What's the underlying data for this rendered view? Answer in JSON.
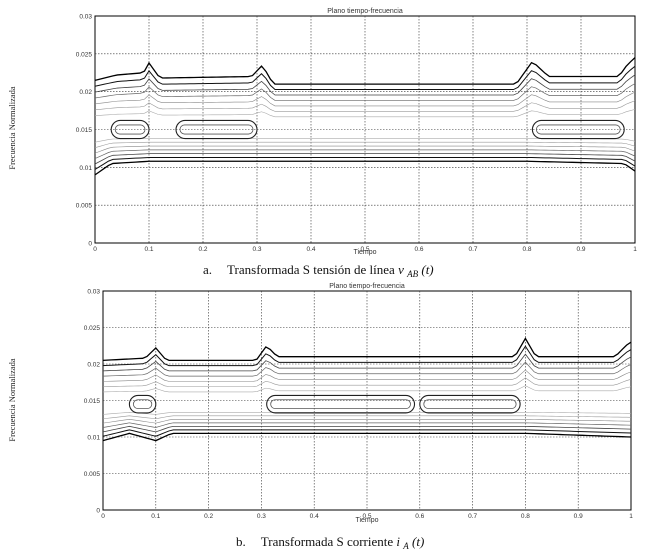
{
  "panels": [
    {
      "caption_letter": "a.",
      "caption_text": "Transformada S tensión de línea ",
      "caption_var": "v",
      "caption_sub": "AB",
      "caption_arg": "(t)",
      "chart_data": {
        "type": "contour",
        "title": "Plano tiempo-frecuencia",
        "xlabel": "Tiempo",
        "ylabel": "Frecuencia Normalizada",
        "xlim": [
          0,
          1
        ],
        "ylim": [
          0,
          0.03
        ],
        "xticks": [
          "0",
          "0.1",
          "0.2",
          "0.3",
          "0.4",
          "0.5",
          "0.6",
          "0.7",
          "0.8",
          "0.9",
          "1"
        ],
        "yticks": [
          "0",
          "0.005",
          "0.01",
          "0.015",
          "0.02",
          "0.025",
          "0.03"
        ],
        "grid": true,
        "center_frequency": 0.015,
        "upper_envelope": [
          [
            0.0,
            0.0215
          ],
          [
            0.04,
            0.0222
          ],
          [
            0.09,
            0.0225
          ],
          [
            0.1,
            0.0238
          ],
          [
            0.12,
            0.0218
          ],
          [
            0.29,
            0.022
          ],
          [
            0.31,
            0.0235
          ],
          [
            0.33,
            0.021
          ],
          [
            0.78,
            0.021
          ],
          [
            0.81,
            0.024
          ],
          [
            0.84,
            0.022
          ],
          [
            0.97,
            0.022
          ],
          [
            0.985,
            0.0235
          ],
          [
            1.0,
            0.0245
          ]
        ],
        "lower_envelope": [
          [
            0.0,
            0.009
          ],
          [
            0.03,
            0.0105
          ],
          [
            0.1,
            0.0108
          ],
          [
            0.3,
            0.0108
          ],
          [
            0.6,
            0.0108
          ],
          [
            0.8,
            0.0108
          ],
          [
            0.98,
            0.0105
          ],
          [
            1.0,
            0.0095
          ]
        ],
        "high_energy_intervals": [
          [
            0.03,
            0.1
          ],
          [
            0.15,
            0.3
          ],
          [
            0.81,
            0.98
          ]
        ]
      }
    },
    {
      "caption_letter": "b.",
      "caption_text": "Transformada S corriente ",
      "caption_var": "i",
      "caption_sub": "A",
      "caption_arg": "(t)",
      "chart_data": {
        "type": "contour",
        "title": "Plano tiempo-frecuencia",
        "xlabel": "Tiempo",
        "ylabel": "Frecuencia Normalizada",
        "xlim": [
          0,
          1
        ],
        "ylim": [
          0,
          0.03
        ],
        "xticks": [
          "0",
          "0.1",
          "0.2",
          "0.3",
          "0.4",
          "0.5",
          "0.6",
          "0.7",
          "0.8",
          "0.9",
          "1"
        ],
        "yticks": [
          "0",
          "0.005",
          "0.01",
          "0.015",
          "0.02",
          "0.025",
          "0.03"
        ],
        "grid": true,
        "center_frequency": 0.0145,
        "upper_envelope": [
          [
            0.0,
            0.0205
          ],
          [
            0.08,
            0.0208
          ],
          [
            0.1,
            0.0222
          ],
          [
            0.12,
            0.0205
          ],
          [
            0.29,
            0.0205
          ],
          [
            0.31,
            0.0225
          ],
          [
            0.33,
            0.021
          ],
          [
            0.78,
            0.021
          ],
          [
            0.8,
            0.0235
          ],
          [
            0.82,
            0.021
          ],
          [
            0.97,
            0.021
          ],
          [
            0.99,
            0.0225
          ],
          [
            1.0,
            0.023
          ]
        ],
        "lower_envelope": [
          [
            0.0,
            0.0095
          ],
          [
            0.05,
            0.0105
          ],
          [
            0.1,
            0.0095
          ],
          [
            0.13,
            0.0105
          ],
          [
            0.3,
            0.0105
          ],
          [
            0.8,
            0.0105
          ],
          [
            1.0,
            0.01
          ]
        ],
        "high_energy_intervals": [
          [
            0.05,
            0.1
          ],
          [
            0.31,
            0.59
          ],
          [
            0.6,
            0.79
          ]
        ]
      }
    }
  ]
}
